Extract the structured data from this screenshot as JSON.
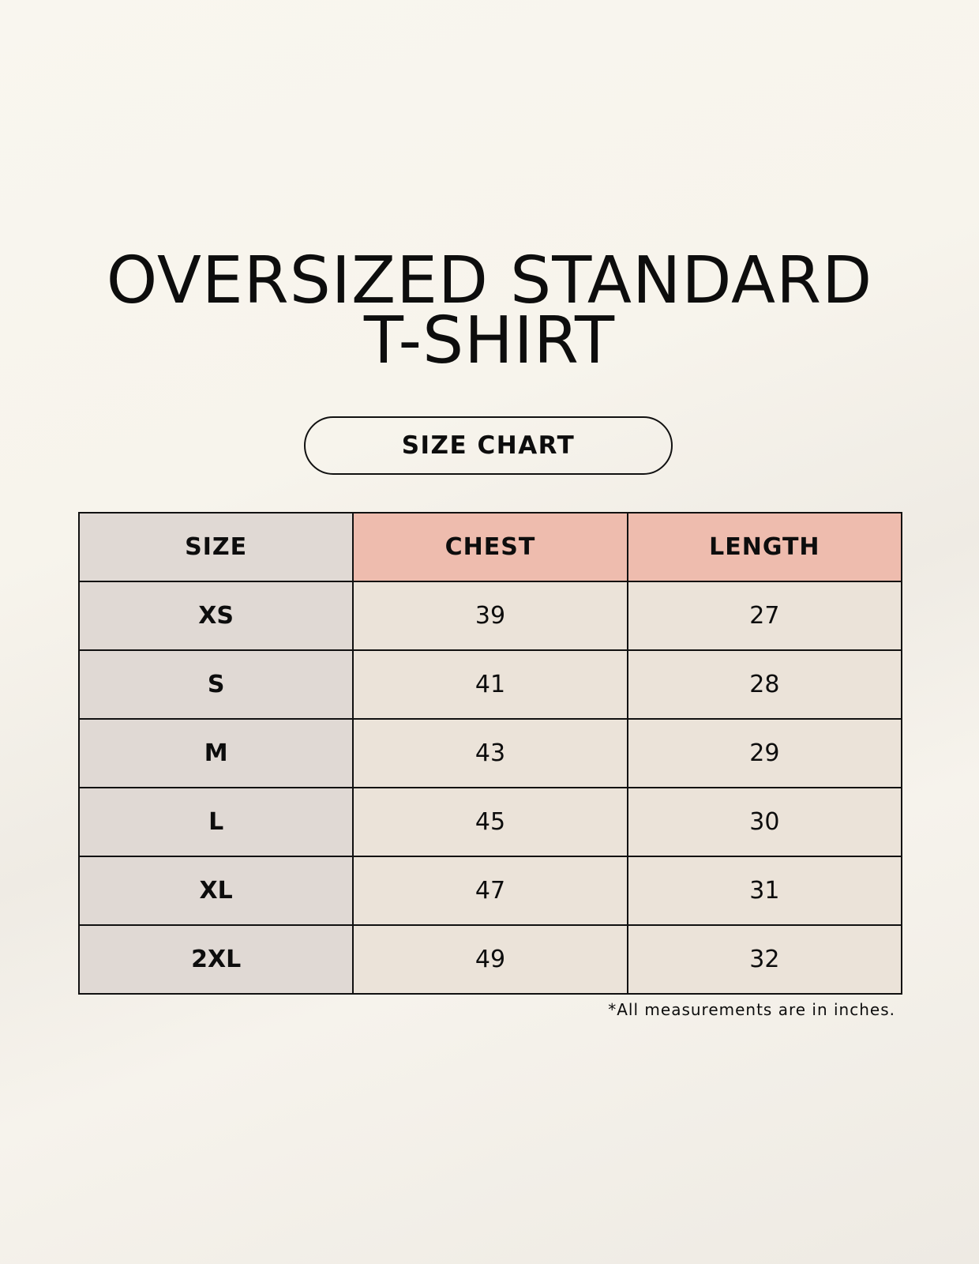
{
  "title": {
    "line1": "OVERSIZED STANDARD",
    "line2": "T-SHIRT"
  },
  "badge": "SIZE CHART",
  "colors": {
    "size_column": "#e0d9d4",
    "header": "#eebcae",
    "cells": "#ebe3d9",
    "background": "#f8f5ef"
  },
  "table": {
    "headers": [
      "SIZE",
      "CHEST",
      "LENGTH"
    ],
    "rows": [
      [
        "XS",
        "39",
        "27"
      ],
      [
        "S",
        "41",
        "28"
      ],
      [
        "M",
        "43",
        "29"
      ],
      [
        "L",
        "45",
        "30"
      ],
      [
        "XL",
        "47",
        "31"
      ],
      [
        "2XL",
        "49",
        "32"
      ]
    ]
  },
  "footnote": "*All measurements are in inches."
}
